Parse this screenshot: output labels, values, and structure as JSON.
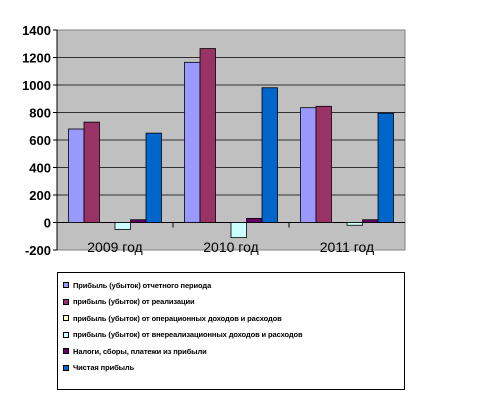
{
  "chart_data": {
    "type": "bar",
    "categories": [
      "2009 год",
      "2010 год",
      "2011 год"
    ],
    "series": [
      {
        "name": "Прибыль (убыток) отчетного периода",
        "color": "#9999ff",
        "values": [
          680,
          1165,
          835
        ]
      },
      {
        "name": "прибыль (убыток) от реализации",
        "color": "#993366",
        "values": [
          730,
          1265,
          845
        ]
      },
      {
        "name": "прибыль (убыток) от операционных доходов и расходов",
        "color": "#ffffcc",
        "values": [
          0,
          0,
          0
        ]
      },
      {
        "name": "прибыль (убыток) от внереализационных доходов и расходов",
        "color": "#ccffff",
        "values": [
          -50,
          -110,
          -20
        ]
      },
      {
        "name": "Налоги, сборы, платежи из прибыли",
        "color": "#660066",
        "values": [
          20,
          30,
          20
        ]
      },
      {
        "name": "Чистая прибыль",
        "color": "#0066cc",
        "values": [
          650,
          980,
          795
        ]
      }
    ],
    "ylim": [
      -200,
      1400
    ],
    "yticks": [
      -200,
      0,
      200,
      400,
      600,
      800,
      1000,
      1200,
      1400
    ],
    "ytick_labels": [
      "-200",
      "0",
      "200",
      "400",
      "600",
      "800",
      "1000",
      "1200",
      "1400"
    ],
    "plot_background": "#c0c0c0",
    "grid": true,
    "legend_position": "bottom"
  }
}
